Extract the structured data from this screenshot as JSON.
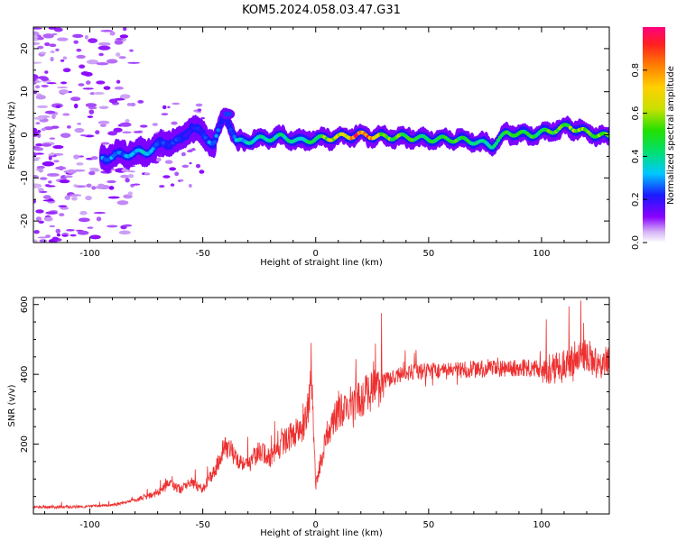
{
  "title": "KOM5.2024.058.03.47.G31",
  "chart_data": [
    {
      "type": "heatmap",
      "xlabel": "Height of straight line (km)",
      "ylabel": "Frequency (Hz)",
      "xlim": [
        -125,
        130
      ],
      "ylim": [
        -25,
        25
      ],
      "xticks": [
        -100,
        -50,
        0,
        50,
        100
      ],
      "yticks": [
        -20,
        -10,
        0,
        10,
        20
      ],
      "colorbar": {
        "label": "Normalized spectral amplitude",
        "range": [
          0,
          1
        ],
        "ticks": [
          0.0,
          0.2,
          0.4,
          0.6,
          0.8
        ]
      },
      "ridge": [
        {
          "x": -95,
          "f": -5.5,
          "a": 0.3
        },
        {
          "x": -85,
          "f": -4.5,
          "a": 0.3
        },
        {
          "x": -75,
          "f": -4.0,
          "a": 0.35
        },
        {
          "x": -68,
          "f": -2.0,
          "a": 0.25
        },
        {
          "x": -60,
          "f": -1.5,
          "a": 0.25
        },
        {
          "x": -55,
          "f": 2.0,
          "a": 0.2
        },
        {
          "x": -40,
          "f": 5.0,
          "a": 0.2
        },
        {
          "x": -45,
          "f": -2.0,
          "a": 0.3
        },
        {
          "x": -35,
          "f": -1.8,
          "a": 0.35
        },
        {
          "x": -25,
          "f": -1.0,
          "a": 0.4
        },
        {
          "x": -15,
          "f": -0.5,
          "a": 0.45
        },
        {
          "x": -7,
          "f": -1.5,
          "a": 0.4
        },
        {
          "x": 0,
          "f": -1.0,
          "a": 0.5
        },
        {
          "x": 10,
          "f": -0.5,
          "a": 0.7
        },
        {
          "x": 20,
          "f": 0.0,
          "a": 0.95
        },
        {
          "x": 30,
          "f": -0.5,
          "a": 0.6
        },
        {
          "x": 40,
          "f": -0.5,
          "a": 0.55
        },
        {
          "x": 50,
          "f": -1.0,
          "a": 0.5
        },
        {
          "x": 60,
          "f": -1.0,
          "a": 0.55
        },
        {
          "x": 70,
          "f": -1.5,
          "a": 0.45
        },
        {
          "x": 78,
          "f": -2.5,
          "a": 0.4
        },
        {
          "x": 85,
          "f": 0.5,
          "a": 0.5
        },
        {
          "x": 95,
          "f": 0.0,
          "a": 0.5
        },
        {
          "x": 105,
          "f": 1.0,
          "a": 0.55
        },
        {
          "x": 112,
          "f": 2.0,
          "a": 0.6
        },
        {
          "x": 120,
          "f": 0.5,
          "a": 0.65
        },
        {
          "x": 130,
          "f": -0.5,
          "a": 0.55
        }
      ]
    },
    {
      "type": "line",
      "xlabel": "Height of straight line (km)",
      "ylabel": "SNR (v/v)",
      "xlim": [
        -125,
        130
      ],
      "ylim": [
        0,
        620
      ],
      "xticks": [
        -100,
        -50,
        0,
        50,
        100
      ],
      "yticks": [
        200,
        400,
        600
      ],
      "color": "#ee3030",
      "series": [
        {
          "x": [
            -125,
            -110,
            -100,
            -90,
            -80,
            -70,
            -65,
            -60,
            -55,
            -50,
            -45,
            -40,
            -35,
            -30,
            -25,
            -20,
            -15,
            -10,
            -5,
            -3,
            -2,
            -1,
            0,
            5,
            10,
            20,
            30,
            40,
            50,
            60,
            70,
            80,
            90,
            100,
            110,
            115,
            120,
            125,
            130
          ],
          "y": [
            20,
            20,
            22,
            25,
            40,
            60,
            90,
            70,
            90,
            70,
            120,
            200,
            160,
            140,
            180,
            160,
            200,
            230,
            250,
            320,
            430,
            260,
            80,
            230,
            290,
            330,
            380,
            405,
            410,
            410,
            415,
            415,
            420,
            415,
            420,
            450,
            460,
            420,
            440
          ]
        }
      ]
    }
  ]
}
